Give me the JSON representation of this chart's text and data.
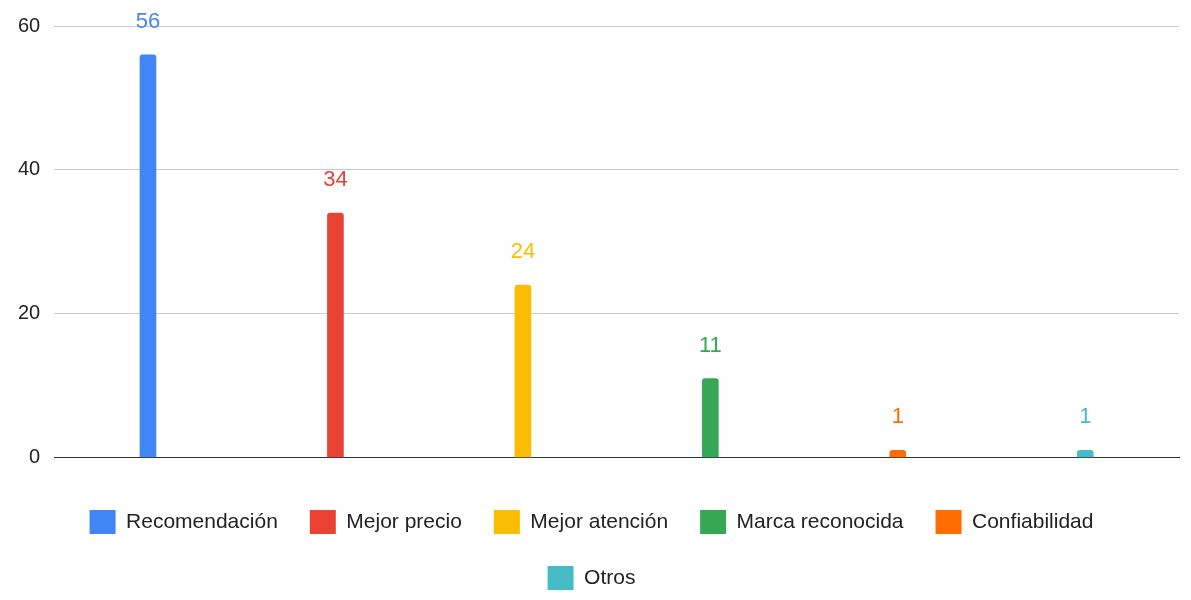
{
  "chart_data": {
    "type": "bar",
    "categories": [
      null,
      null,
      null,
      null,
      null,
      null
    ],
    "series": [
      {
        "name": "Recomendación",
        "color": "#4285f4",
        "values": [
          56,
          null,
          null,
          null,
          null,
          null
        ]
      },
      {
        "name": "Mejor precio",
        "color": "#ea4335",
        "values": [
          null,
          34,
          null,
          null,
          null,
          null
        ]
      },
      {
        "name": "Mejor atención",
        "color": "#fbbc04",
        "values": [
          null,
          null,
          24,
          null,
          null,
          null
        ]
      },
      {
        "name": "Marca reconocida",
        "color": "#34a853",
        "values": [
          null,
          null,
          null,
          11,
          null,
          null
        ]
      },
      {
        "name": "Confiabilidad",
        "color": "#ff6d01",
        "values": [
          null,
          null,
          null,
          null,
          1,
          null
        ]
      },
      {
        "name": "Otros",
        "color": "#46bdc6",
        "values": [
          null,
          null,
          null,
          null,
          null,
          1
        ]
      }
    ],
    "ylim": [
      0,
      60
    ],
    "yticks": [
      0,
      20,
      40,
      60
    ],
    "grid": "y",
    "legend": "bottom",
    "data_labels": true
  }
}
